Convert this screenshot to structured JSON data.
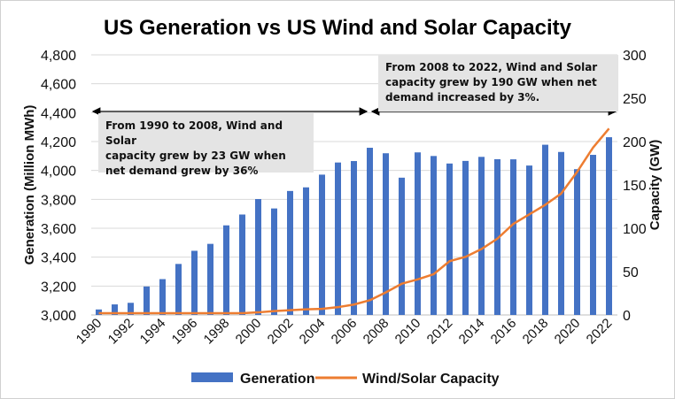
{
  "chart_data": {
    "type": "bar+line",
    "title": "US Generation vs US Wind and Solar Capacity",
    "ylabel": "Generation (Million MWh)",
    "y2label": "Capacity (GW)",
    "ylim": [
      3000,
      4800
    ],
    "y2lim": [
      0,
      300
    ],
    "yticks": [
      "3,000",
      "3,200",
      "3,400",
      "3,600",
      "3,800",
      "4,000",
      "4,200",
      "4,400",
      "4,600",
      "4,800"
    ],
    "y2ticks": [
      "0",
      "50",
      "100",
      "150",
      "200",
      "250",
      "300"
    ],
    "categories": [
      1990,
      1991,
      1992,
      1993,
      1994,
      1995,
      1996,
      1997,
      1998,
      1999,
      2000,
      2001,
      2002,
      2003,
      2004,
      2005,
      2006,
      2007,
      2008,
      2009,
      2010,
      2011,
      2012,
      2013,
      2014,
      2015,
      2016,
      2017,
      2018,
      2019,
      2020,
      2021,
      2022
    ],
    "xtick_labels": [
      "1990",
      "1992",
      "1994",
      "1996",
      "1998",
      "2000",
      "2002",
      "2004",
      "2006",
      "2008",
      "2010",
      "2012",
      "2014",
      "2016",
      "2018",
      "2020",
      "2022"
    ],
    "grid": true,
    "legend_position": "bottom",
    "series": [
      {
        "name": "Generation",
        "type": "bar",
        "axis": "left",
        "color": "#4472c4",
        "values": [
          3038,
          3073,
          3084,
          3197,
          3248,
          3353,
          3444,
          3492,
          3620,
          3695,
          3802,
          3737,
          3858,
          3883,
          3971,
          4055,
          4065,
          4157,
          4119,
          3950,
          4125,
          4100,
          4048,
          4066,
          4094,
          4078,
          4077,
          4034,
          4178,
          4128,
          4009,
          4108,
          4230
        ]
      },
      {
        "name": "Wind/Solar Capacity",
        "type": "line",
        "axis": "right",
        "color": "#ed7d31",
        "values": [
          2,
          2,
          2,
          2,
          2,
          2,
          2,
          2,
          2,
          2,
          3,
          4.5,
          5.5,
          6.5,
          7,
          9,
          12,
          17,
          26,
          36,
          41,
          47,
          62,
          67,
          76,
          88,
          105,
          116,
          127,
          140,
          165,
          193,
          215
        ]
      }
    ],
    "annotations": [
      {
        "lines": [
          "From 1990 to 2008, Wind and Solar",
          "capacity grew by 23 GW when",
          "net demand grew by 36%"
        ]
      },
      {
        "lines": [
          "From 2008 to 2022, Wind and Solar",
          "capacity grew by 190 GW when net",
          "demand increased by 3%."
        ]
      }
    ]
  }
}
